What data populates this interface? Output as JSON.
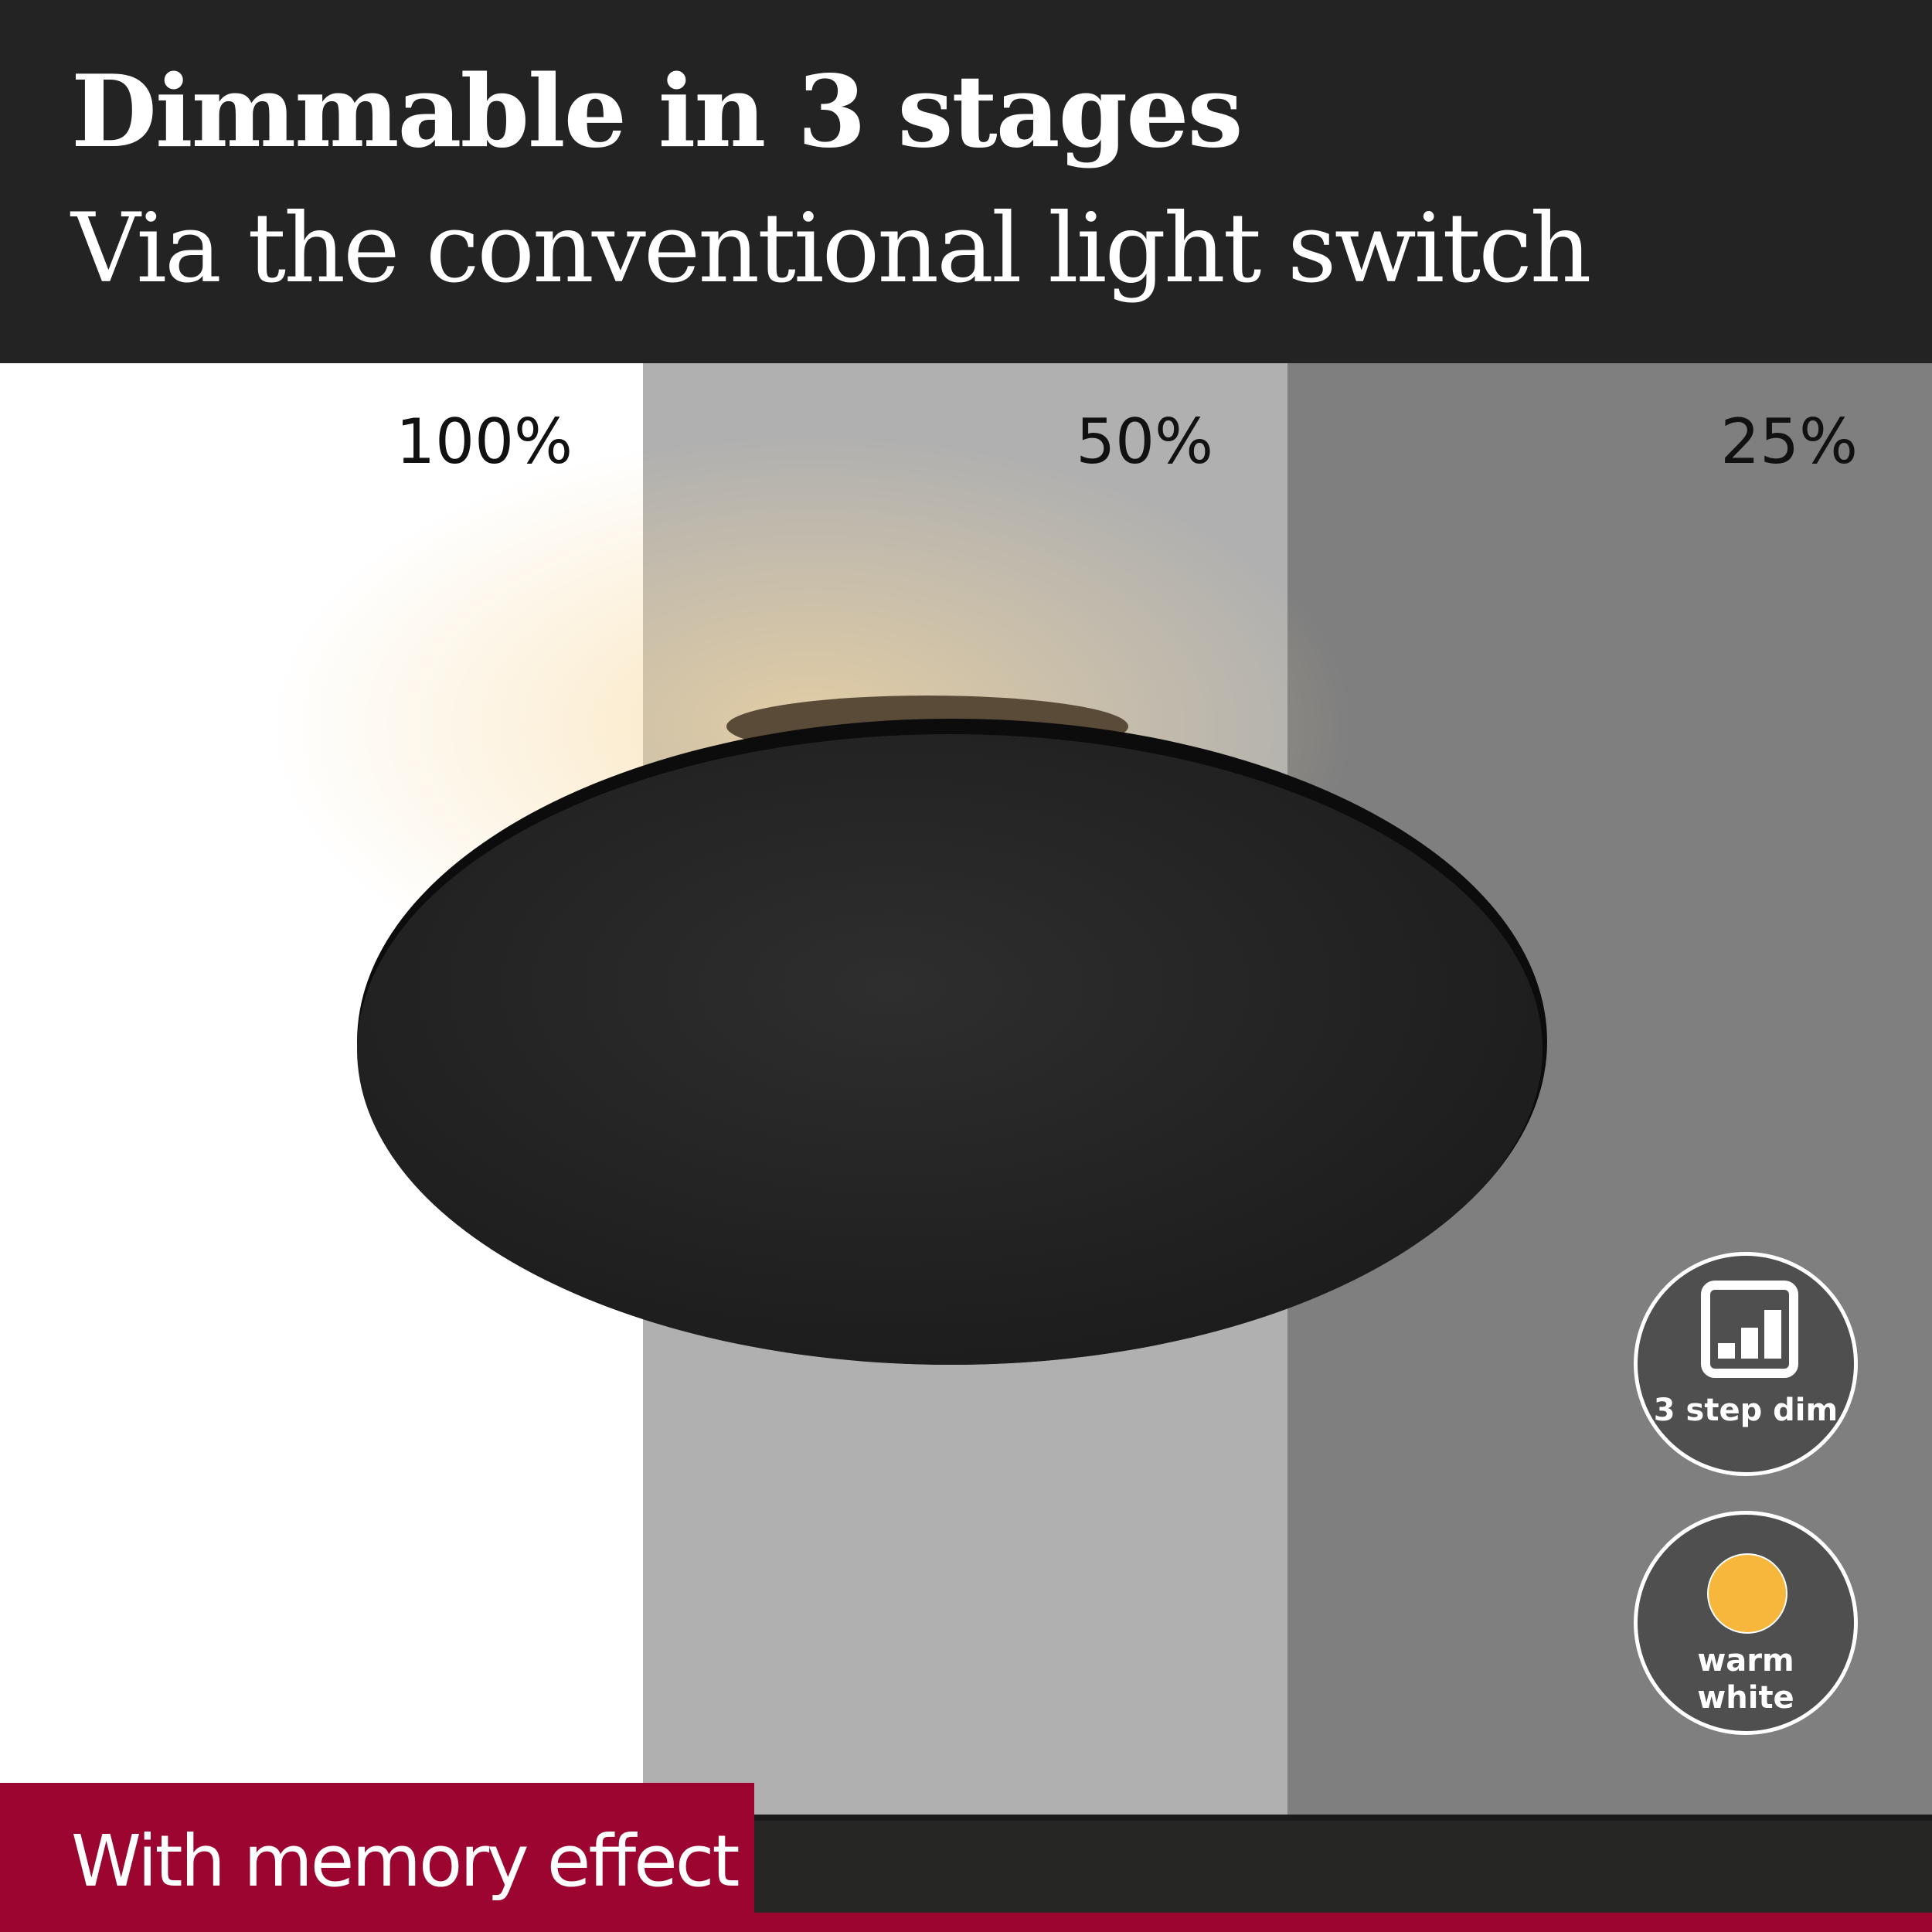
{
  "header": {
    "title": "Dimmable in 3 stages",
    "subtitle": "Via the conventional light switch"
  },
  "stages": [
    {
      "label": "100%",
      "background": "#ffffff"
    },
    {
      "label": "50%",
      "background": "#b0b0b0"
    },
    {
      "label": "25%",
      "background": "#7f7f7f"
    }
  ],
  "badges": {
    "dim": {
      "label": "3 step dim",
      "icon": "signal-bars-icon"
    },
    "color": {
      "label_line1": "warm",
      "label_line2": "white",
      "icon": "warm-light-dot-icon",
      "dot_color": "#f6b73c"
    }
  },
  "footer": {
    "memory_label": "With memory effect",
    "accent_color": "#9b0530"
  }
}
